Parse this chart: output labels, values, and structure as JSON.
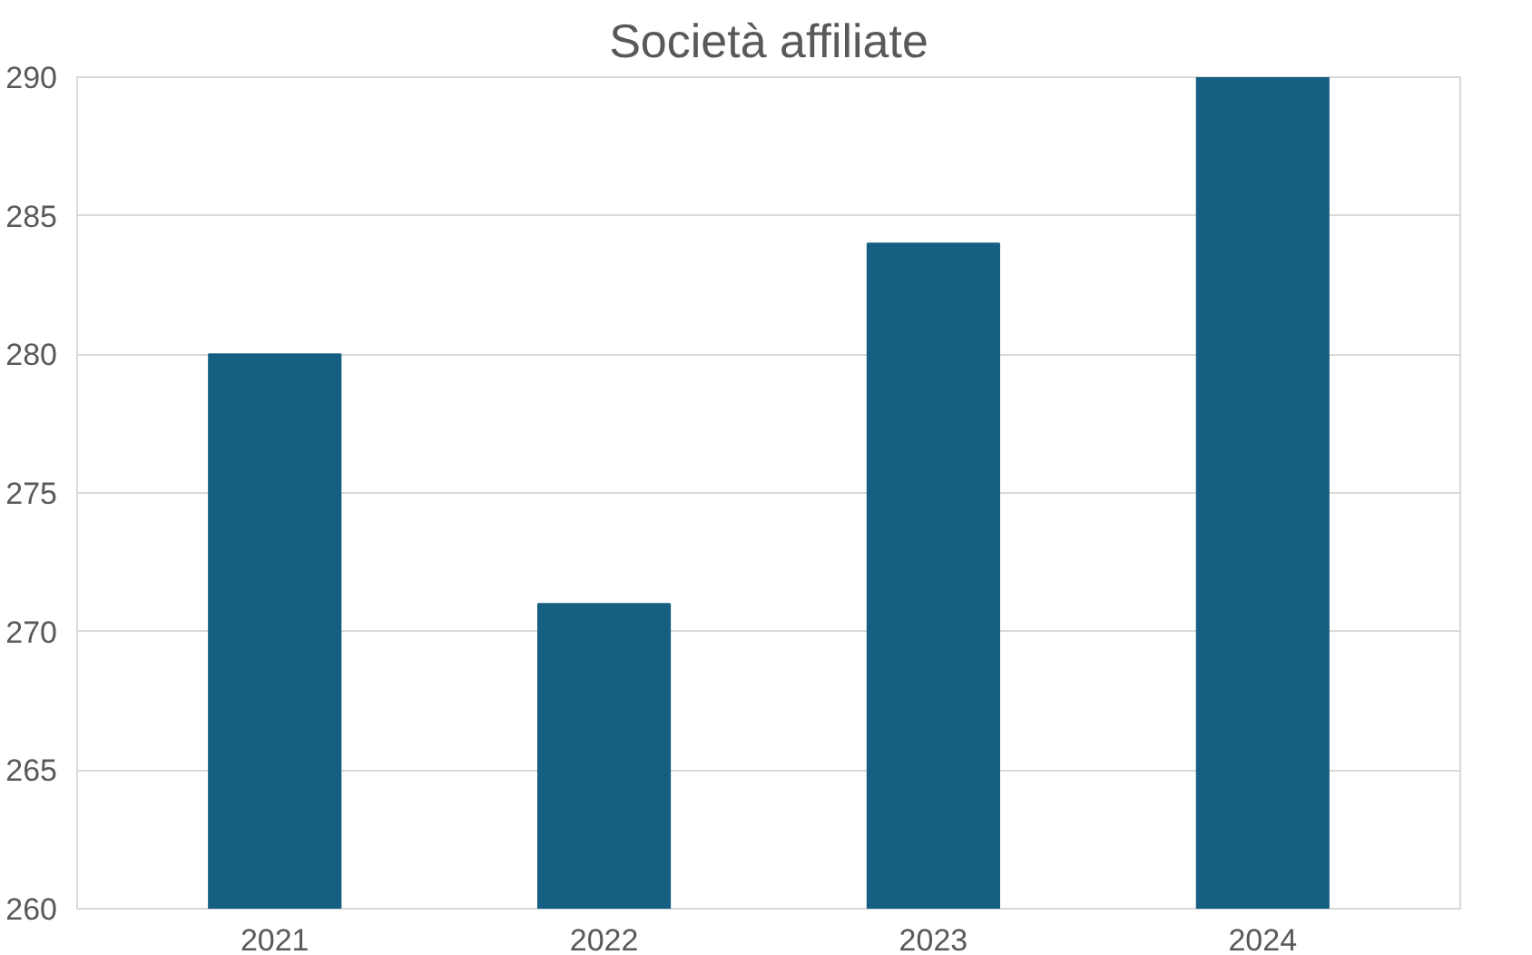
{
  "chart_data": {
    "type": "bar",
    "title": "Società affiliate",
    "categories": [
      "2021",
      "2022",
      "2023",
      "2024"
    ],
    "values": [
      280,
      271,
      284,
      290
    ],
    "color": "#156082",
    "ylim": [
      260,
      290
    ],
    "yticks": [
      260,
      265,
      270,
      275,
      280,
      285,
      290
    ],
    "grid": "y"
  }
}
